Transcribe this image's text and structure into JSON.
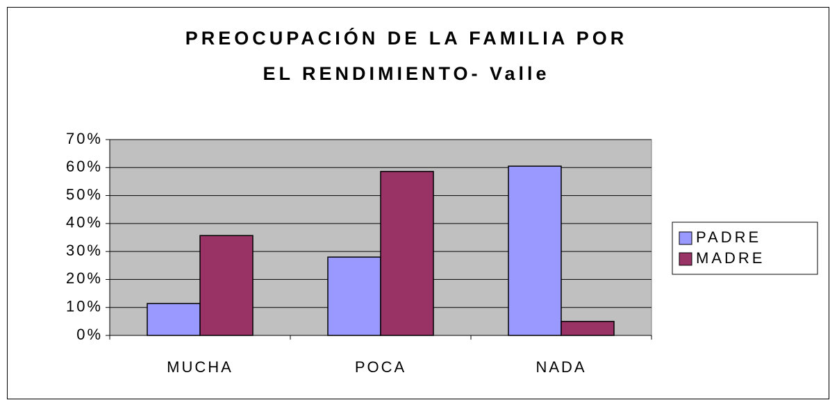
{
  "chart_data": {
    "type": "bar",
    "title": [
      "PREOCUPACIÓN DE LA FAMILIA POR",
      "EL RENDIMIENTO- Valle"
    ],
    "categories": [
      "MUCHA",
      "POCA",
      "NADA"
    ],
    "series": [
      {
        "name": "PADRE",
        "color": "#9999ff",
        "values": [
          11.4,
          28,
          60.5
        ]
      },
      {
        "name": "MADRE",
        "color": "#993366",
        "values": [
          35.7,
          58.6,
          5
        ]
      }
    ],
    "ylim": [
      0,
      70
    ],
    "yticks": [
      {
        "value": 0,
        "label": "0%"
      },
      {
        "value": 10,
        "label": "10%"
      },
      {
        "value": 20,
        "label": "20%"
      },
      {
        "value": 30,
        "label": "30%"
      },
      {
        "value": 40,
        "label": "40%"
      },
      {
        "value": 50,
        "label": "50%"
      },
      {
        "value": 60,
        "label": "60%"
      },
      {
        "value": 70,
        "label": "70%"
      }
    ],
    "grid": true,
    "plot_background": "#c0c0c0",
    "legend": "right"
  }
}
